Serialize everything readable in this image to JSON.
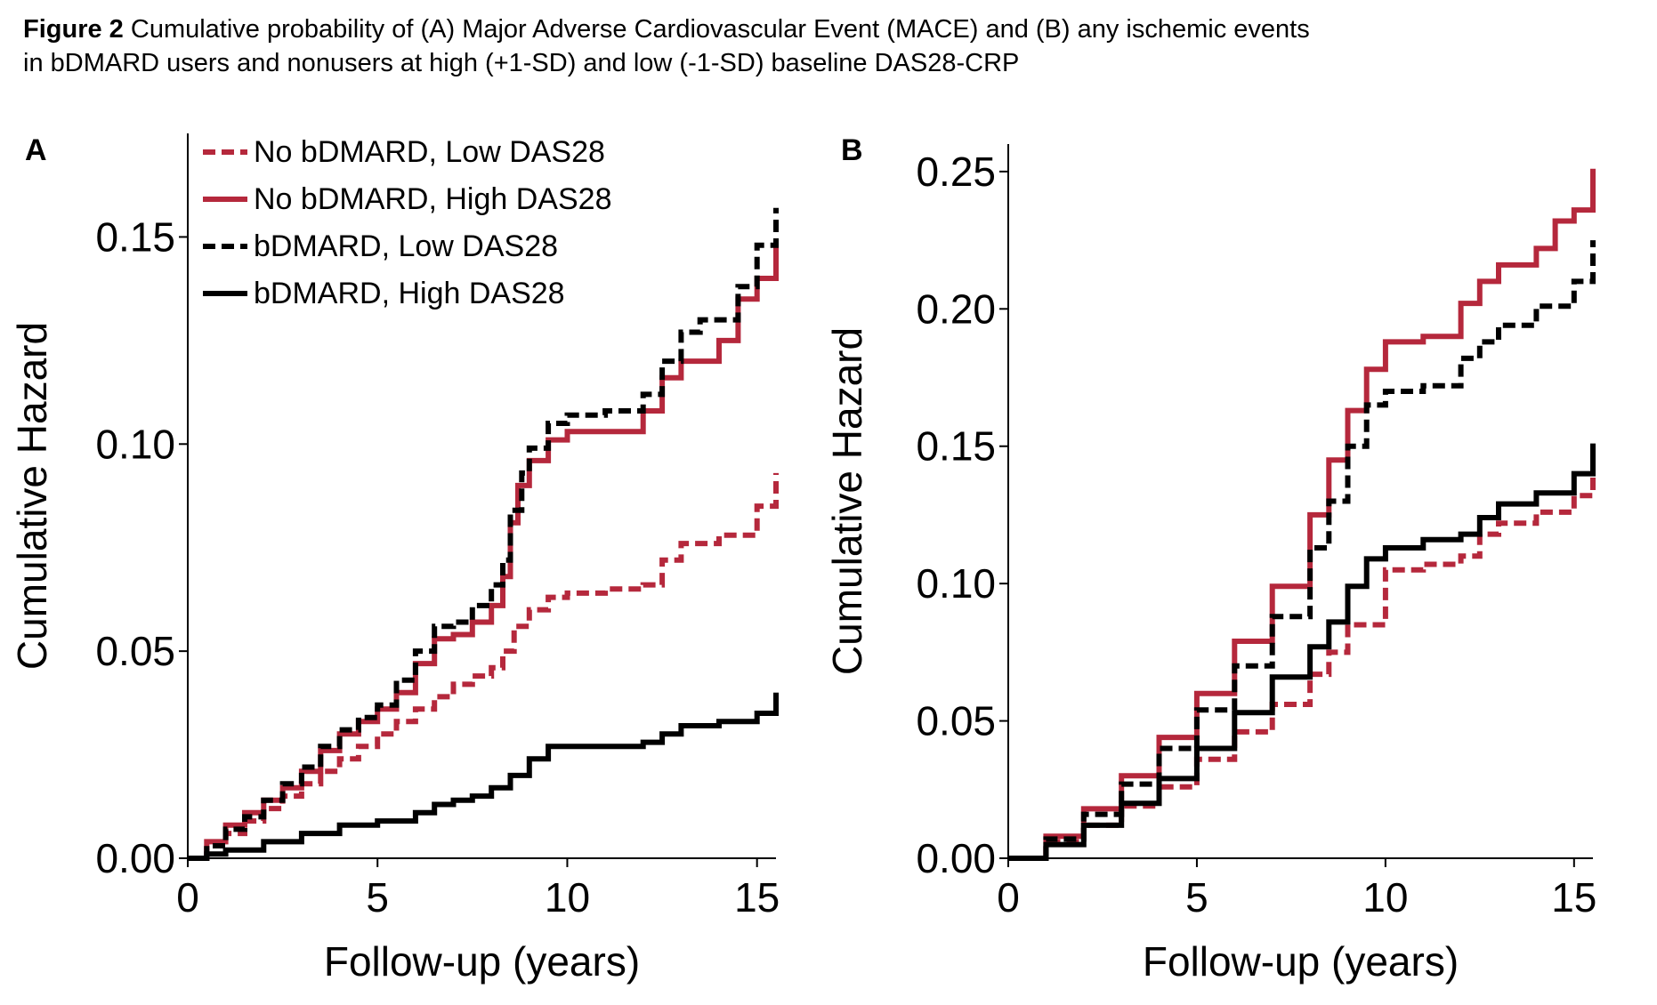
{
  "caption": {
    "label": "Figure 2",
    "line1": "Cumulative probability of (A) Major Adverse Cardiovascular Event (MACE) and (B) any ischemic events",
    "line2": "in bDMARD users and nonusers at high (+1-SD) and low (-1-SD) baseline DAS28-CRP"
  },
  "colors": {
    "red": "#b5283c",
    "black": "#000000"
  },
  "chart_data": [
    {
      "panel": "A",
      "type": "line",
      "ylabel": "Cumulative Hazard",
      "xlabel": "Follow-up (years)",
      "xlim": [
        0,
        15.5
      ],
      "ylim": [
        0,
        0.175
      ],
      "xticks": [
        0,
        5,
        10,
        15
      ],
      "xtick_labels": [
        "0",
        "5",
        "10",
        "15"
      ],
      "yticks": [
        0,
        0.05,
        0.1,
        0.15
      ],
      "ytick_labels": [
        "0.00",
        "0.05",
        "0.10",
        "0.15"
      ],
      "legend_position": "top-left",
      "grid": false,
      "series": [
        {
          "name": "No bDMARD, Low DAS28",
          "color": "#b5283c",
          "dash": true,
          "x": [
            0,
            0.5,
            1,
            1.5,
            2,
            2.5,
            3,
            3.5,
            4,
            4.5,
            5,
            5.5,
            6,
            6.5,
            7,
            7.5,
            8,
            8.3,
            8.6,
            9,
            9.5,
            10,
            11,
            12,
            12.5,
            13,
            14,
            15,
            15.5
          ],
          "y": [
            0,
            0.003,
            0.006,
            0.009,
            0.012,
            0.015,
            0.018,
            0.021,
            0.024,
            0.027,
            0.03,
            0.033,
            0.036,
            0.039,
            0.042,
            0.044,
            0.046,
            0.05,
            0.056,
            0.06,
            0.063,
            0.064,
            0.065,
            0.066,
            0.072,
            0.076,
            0.078,
            0.085,
            0.093
          ]
        },
        {
          "name": "No bDMARD, High DAS28",
          "color": "#b5283c",
          "dash": false,
          "x": [
            0,
            0.5,
            1,
            1.5,
            2,
            2.5,
            3,
            3.5,
            4,
            4.5,
            5,
            5.5,
            6,
            6.5,
            7,
            7.5,
            8,
            8.3,
            8.5,
            8.7,
            9,
            9.5,
            10,
            11,
            12,
            12.5,
            13,
            14,
            14.5,
            15,
            15.5
          ],
          "y": [
            0,
            0.004,
            0.008,
            0.011,
            0.014,
            0.017,
            0.021,
            0.026,
            0.03,
            0.033,
            0.036,
            0.04,
            0.047,
            0.053,
            0.054,
            0.057,
            0.061,
            0.068,
            0.081,
            0.09,
            0.096,
            0.101,
            0.103,
            0.103,
            0.108,
            0.116,
            0.12,
            0.125,
            0.135,
            0.14,
            0.148
          ]
        },
        {
          "name": "bDMARD, Low DAS28",
          "color": "#000000",
          "dash": true,
          "x": [
            0,
            0.5,
            1,
            1.5,
            2,
            2.5,
            3,
            3.5,
            4,
            4.5,
            5,
            5.5,
            6,
            6.5,
            7,
            7.5,
            8,
            8.3,
            8.5,
            8.8,
            9,
            9.5,
            10,
            11,
            12,
            12.5,
            13,
            13.5,
            14,
            14.5,
            15,
            15.5
          ],
          "y": [
            0,
            0.003,
            0.007,
            0.01,
            0.014,
            0.018,
            0.022,
            0.027,
            0.031,
            0.034,
            0.037,
            0.043,
            0.05,
            0.056,
            0.057,
            0.061,
            0.066,
            0.072,
            0.084,
            0.093,
            0.099,
            0.105,
            0.107,
            0.108,
            0.112,
            0.12,
            0.127,
            0.13,
            0.13,
            0.138,
            0.148,
            0.157
          ]
        },
        {
          "name": "bDMARD, High DAS28",
          "color": "#000000",
          "dash": false,
          "x": [
            0,
            0.5,
            1,
            2,
            3,
            4,
            5,
            6,
            6.5,
            7,
            7.5,
            8,
            8.5,
            9,
            9.5,
            10,
            11,
            12,
            12.5,
            13,
            14,
            15,
            15.5
          ],
          "y": [
            0,
            0.001,
            0.002,
            0.004,
            0.006,
            0.008,
            0.009,
            0.011,
            0.013,
            0.014,
            0.015,
            0.017,
            0.02,
            0.024,
            0.027,
            0.027,
            0.027,
            0.028,
            0.03,
            0.032,
            0.033,
            0.035,
            0.04
          ]
        }
      ]
    },
    {
      "panel": "B",
      "type": "line",
      "ylabel": "Cumulative Hazard",
      "xlabel": "Follow-up (years)",
      "xlim": [
        0,
        15.5
      ],
      "ylim": [
        0,
        0.26
      ],
      "xticks": [
        0,
        5,
        10,
        15
      ],
      "xtick_labels": [
        "0",
        "5",
        "10",
        "15"
      ],
      "yticks": [
        0,
        0.05,
        0.1,
        0.15,
        0.2,
        0.25
      ],
      "ytick_labels": [
        "0.00",
        "0.05",
        "0.10",
        "0.15",
        "0.20",
        "0.25"
      ],
      "grid": false,
      "series": [
        {
          "name": "No bDMARD, Low DAS28",
          "color": "#b5283c",
          "dash": true,
          "x": [
            0,
            1,
            2,
            3,
            4,
            5,
            6,
            7,
            8,
            8.5,
            9,
            10,
            11,
            12,
            12.5,
            13,
            14,
            15,
            15.5
          ],
          "y": [
            0,
            0.006,
            0.012,
            0.019,
            0.026,
            0.036,
            0.046,
            0.056,
            0.067,
            0.075,
            0.085,
            0.105,
            0.107,
            0.11,
            0.118,
            0.122,
            0.126,
            0.132,
            0.143
          ]
        },
        {
          "name": "No bDMARD, High DAS28",
          "color": "#b5283c",
          "dash": false,
          "x": [
            0,
            1,
            2,
            3,
            4,
            5,
            6,
            7,
            8,
            8.5,
            9,
            9.5,
            10,
            11,
            12,
            12.5,
            13,
            14,
            14.5,
            15,
            15.5
          ],
          "y": [
            0,
            0.008,
            0.018,
            0.03,
            0.044,
            0.06,
            0.079,
            0.099,
            0.125,
            0.145,
            0.163,
            0.178,
            0.188,
            0.19,
            0.202,
            0.21,
            0.216,
            0.222,
            0.232,
            0.236,
            0.251
          ]
        },
        {
          "name": "bDMARD, Low DAS28",
          "color": "#000000",
          "dash": true,
          "x": [
            0,
            1,
            2,
            3,
            4,
            5,
            6,
            7,
            8,
            8.5,
            9,
            9.5,
            10,
            11,
            12,
            12.5,
            13,
            14,
            15,
            15.5
          ],
          "y": [
            0,
            0.007,
            0.016,
            0.027,
            0.04,
            0.054,
            0.07,
            0.088,
            0.113,
            0.13,
            0.15,
            0.165,
            0.17,
            0.172,
            0.182,
            0.188,
            0.194,
            0.201,
            0.21,
            0.225
          ]
        },
        {
          "name": "bDMARD, High DAS28",
          "color": "#000000",
          "dash": false,
          "x": [
            0,
            1,
            2,
            3,
            4,
            5,
            6,
            7,
            8,
            8.5,
            9,
            9.5,
            10,
            11,
            12,
            12.5,
            13,
            14,
            15,
            15.5
          ],
          "y": [
            0,
            0.005,
            0.012,
            0.02,
            0.029,
            0.04,
            0.053,
            0.066,
            0.077,
            0.086,
            0.099,
            0.109,
            0.113,
            0.116,
            0.118,
            0.124,
            0.129,
            0.133,
            0.14,
            0.151
          ]
        }
      ]
    }
  ]
}
